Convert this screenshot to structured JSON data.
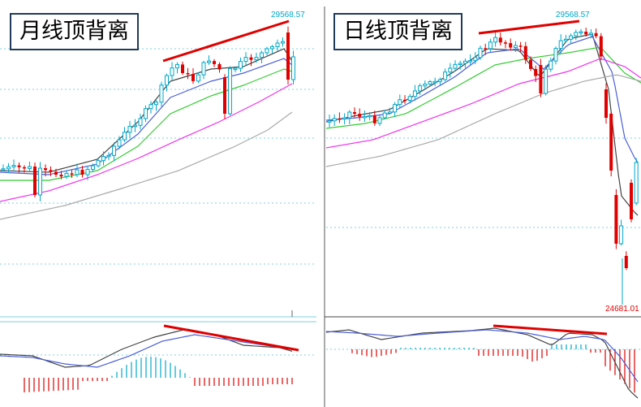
{
  "charts": [
    {
      "title": "月线顶背离",
      "high_label": "29568.57",
      "low_label": ""
    },
    {
      "title": "日线顶背离",
      "high_label": "29568.57",
      "low_label": "24681.01"
    }
  ],
  "colors": {
    "up_candle": "#00a8c8",
    "down_candle": "#e00000",
    "ma_fast": "#444444",
    "ma_mid": "#4b5fd6",
    "ma_slow": "#33cc33",
    "ma_long": "#ee33ee",
    "ma_longest": "#aaaaaa",
    "divergence_line": "#e00000",
    "grid": "#7fd0e0",
    "frame": "#444444",
    "label": "#00a8c8"
  },
  "chart_data": [
    {
      "type": "candlestick",
      "title": "月线顶背离",
      "price_high": 29568.57,
      "annotations": [
        "price higher high",
        "MACD lower high (top divergence)"
      ]
    },
    {
      "type": "candlestick",
      "title": "日线顶背离",
      "price_high": 29568.57,
      "price_low": 24681.01,
      "annotations": [
        "price higher high",
        "MACD lower high (top divergence)"
      ]
    }
  ]
}
